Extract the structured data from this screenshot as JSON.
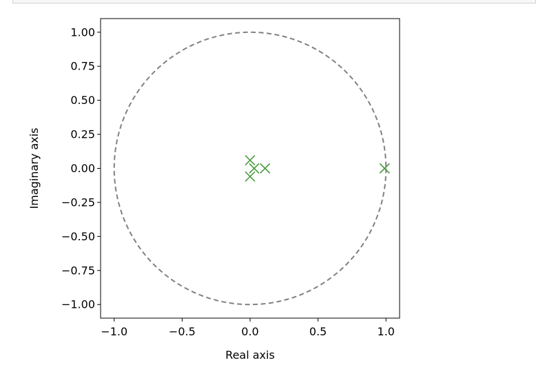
{
  "chart_data": {
    "type": "scatter",
    "xlabel": "Real axis",
    "ylabel": "Imaginary axis",
    "xlim": [
      -1.1,
      1.1
    ],
    "ylim": [
      -1.1,
      1.1
    ],
    "xticks": [
      -1.0,
      -0.5,
      0.0,
      0.5,
      1.0
    ],
    "xtick_labels": [
      "−1.0",
      "−0.5",
      "0.0",
      "0.5",
      "1.0"
    ],
    "yticks": [
      1.0,
      0.75,
      0.5,
      0.25,
      0.0,
      -0.25,
      -0.5,
      -0.75,
      -1.0
    ],
    "ytick_labels": [
      "1.00",
      "0.75",
      "0.50",
      "0.25",
      "0.00",
      "−0.25",
      "−0.50",
      "−0.75",
      "−1.00"
    ],
    "unit_circle": {
      "radius": 1.0,
      "style": "dashed",
      "color": "#808080"
    },
    "marker": "x",
    "marker_color": "#4a9a3e",
    "points": [
      {
        "x": 0.0,
        "y": 0.06
      },
      {
        "x": 0.0,
        "y": -0.06
      },
      {
        "x": 0.03,
        "y": 0.0
      },
      {
        "x": 0.11,
        "y": 0.0
      },
      {
        "x": 0.99,
        "y": 0.0
      }
    ],
    "grid": false
  }
}
